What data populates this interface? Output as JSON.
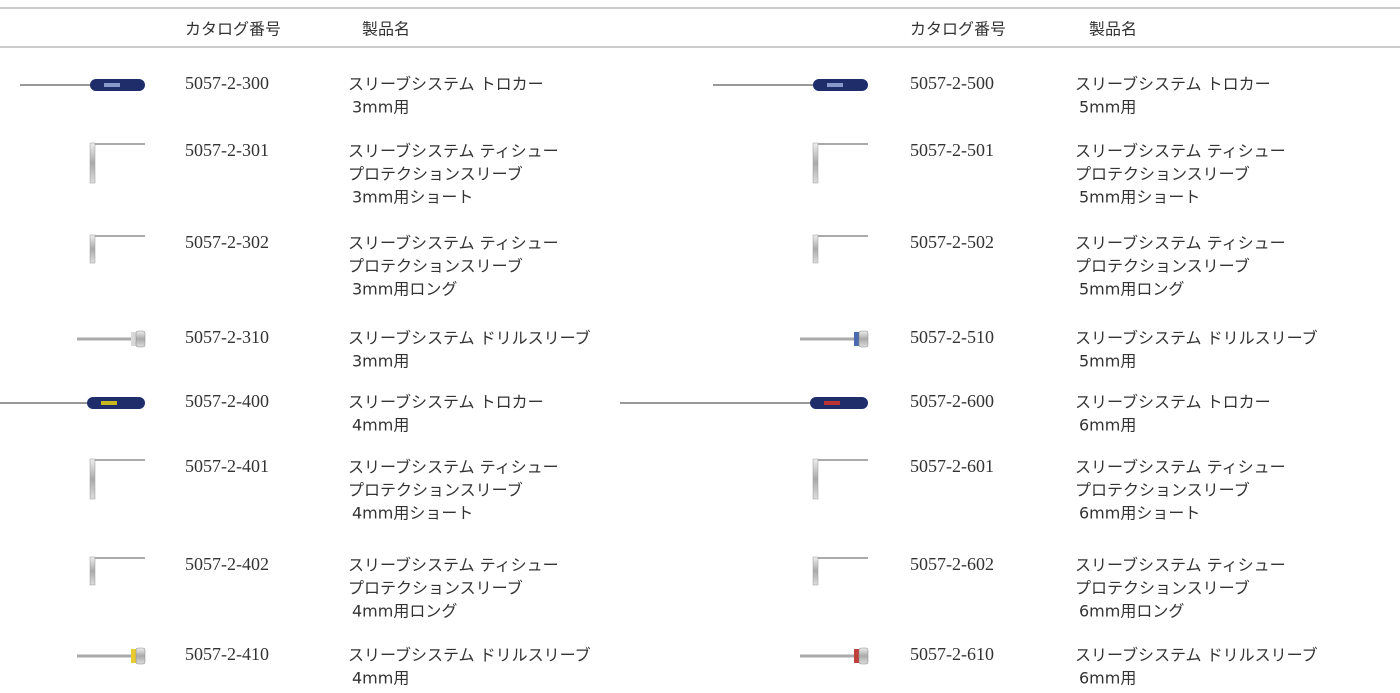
{
  "sections": [
    {
      "headers": {
        "catalog": "カタログ番号",
        "name": "製品名"
      },
      "rows": [
        {
          "catalog": "5057-2-300",
          "name": [
            "スリーブシステム トロカー",
            "3mm用"
          ]
        },
        {
          "catalog": "5057-2-301",
          "name": [
            "スリーブシステム ティシュー",
            "プロテクションスリーブ",
            "3mm用ショート"
          ]
        },
        {
          "catalog": "5057-2-302",
          "name": [
            "スリーブシステム ティシュー",
            "プロテクションスリーブ",
            "3mm用ロング"
          ]
        },
        {
          "catalog": "5057-2-310",
          "name": [
            "スリーブシステム ドリルスリーブ",
            "3mm用"
          ]
        },
        {
          "catalog": "5057-2-400",
          "name": [
            "スリーブシステム トロカー",
            "4mm用"
          ]
        },
        {
          "catalog": "5057-2-401",
          "name": [
            "スリーブシステム ティシュー",
            "プロテクションスリーブ",
            "4mm用ショート"
          ]
        },
        {
          "catalog": "5057-2-402",
          "name": [
            "スリーブシステム ティシュー",
            "プロテクションスリーブ",
            "4mm用ロング"
          ]
        },
        {
          "catalog": "5057-2-410",
          "name": [
            "スリーブシステム ドリルスリーブ",
            "4mm用"
          ]
        }
      ]
    },
    {
      "headers": {
        "catalog": "カタログ番号",
        "name": "製品名"
      },
      "rows": [
        {
          "catalog": "5057-2-500",
          "name": [
            "スリーブシステム トロカー",
            "5mm用"
          ]
        },
        {
          "catalog": "5057-2-501",
          "name": [
            "スリーブシステム ティシュー",
            "プロテクションスリーブ",
            "5mm用ショート"
          ]
        },
        {
          "catalog": "5057-2-502",
          "name": [
            "スリーブシステム ティシュー",
            "プロテクションスリーブ",
            "5mm用ロング"
          ]
        },
        {
          "catalog": "5057-2-510",
          "name": [
            "スリーブシステム ドリルスリーブ",
            "5mm用"
          ]
        },
        {
          "catalog": "5057-2-600",
          "name": [
            "スリーブシステム トロカー",
            "6mm用"
          ]
        },
        {
          "catalog": "5057-2-601",
          "name": [
            "スリーブシステム ティシュー",
            "プロテクションスリーブ",
            "6mm用ショート"
          ]
        },
        {
          "catalog": "5057-2-602",
          "name": [
            "スリーブシステム ティシュー",
            "プロテクションスリーブ",
            "6mm用ロング"
          ]
        },
        {
          "catalog": "5057-2-610",
          "name": [
            "スリーブシステム ドリルスリーブ",
            "6mm用"
          ]
        }
      ]
    }
  ]
}
